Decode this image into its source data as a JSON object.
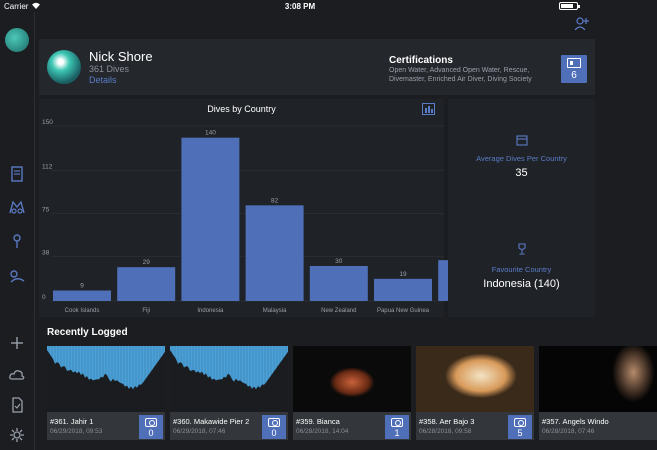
{
  "status_bar": {
    "carrier": "Carrier",
    "time": "3:08 PM"
  },
  "profile": {
    "name": "Nick Shore",
    "dives": "361 Dives",
    "details_link": "Details",
    "certifications_title": "Certifications",
    "certifications_text": "Open Water, Advanced Open Water, Rescue, Divemaster, Enriched Air Diver, Diving Society",
    "certifications_count": "6"
  },
  "chart_data": {
    "type": "bar",
    "title": "Dives by Country",
    "categories": [
      "Cook Islands",
      "Fiji",
      "Indonesia",
      "Malaysia",
      "New Zealand",
      "Papua New Guinea",
      ""
    ],
    "values": [
      9,
      29,
      140,
      82,
      30,
      19,
      35
    ],
    "data_labels": [
      "9",
      "29",
      "140",
      "82",
      "30",
      "19",
      ""
    ],
    "yticks": [
      "150",
      "112",
      "75",
      "38",
      "0"
    ],
    "ytick_values": [
      150,
      112,
      75,
      38,
      0
    ],
    "ylim": [
      0,
      150
    ],
    "bar_color": "#4f6fb8",
    "grid": true
  },
  "stats": {
    "avg_label": "Average Dives Per Country",
    "avg_value": "35",
    "fav_label": "Favourite Country",
    "fav_value": "Indonesia (140)"
  },
  "recent": {
    "title": "Recently Logged",
    "cards": [
      {
        "title": "#361. Jahir 1",
        "date": "06/29/2018, 09:53",
        "photos": "0",
        "thumb": "profile"
      },
      {
        "title": "#360. Makawide Pier 2",
        "date": "06/29/2018, 07:46",
        "photos": "0",
        "thumb": "profile"
      },
      {
        "title": "#359. Bianca",
        "date": "06/28/2018, 14:04",
        "photos": "1",
        "thumb": "photo-shrimp"
      },
      {
        "title": "#358. Aer Bajo 3",
        "date": "06/28/2018, 09:58",
        "photos": "5",
        "thumb": "photo-fish"
      },
      {
        "title": "#357. Angels Windo",
        "date": "06/28/2018, 07:46",
        "photos": "",
        "thumb": "photo-dark"
      }
    ]
  },
  "colors": {
    "accent": "#4f6fb8",
    "link": "#5b7cc8",
    "background": "#1b1d21",
    "panel": "#1f2226"
  }
}
